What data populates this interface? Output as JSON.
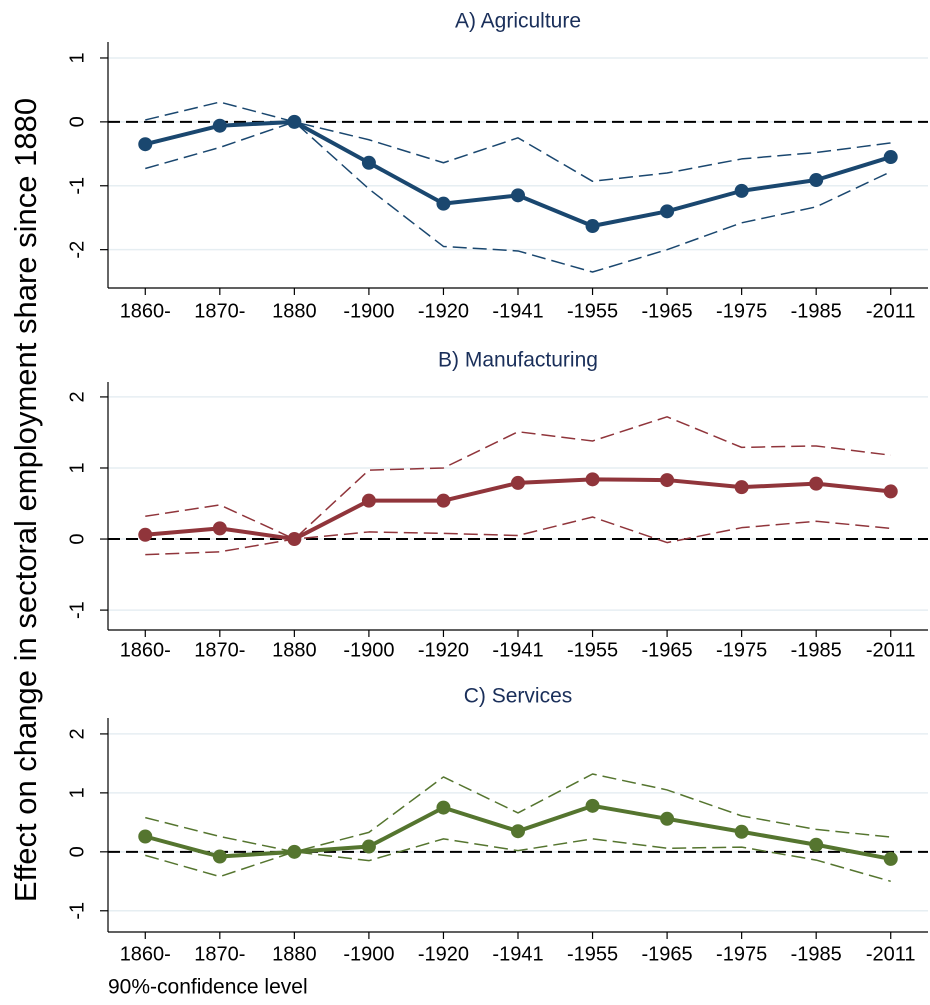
{
  "ylabel": "Effect on change in sectoral employment share since 1880",
  "note": "90%-confidence level",
  "chart_data": [
    {
      "type": "line",
      "title": "A) Agriculture",
      "categories": [
        "1860-",
        "1870-",
        "1880",
        "-1900",
        "-1920",
        "-1941",
        "-1955",
        "-1965",
        "-1975",
        "-1985",
        "-2011"
      ],
      "series": [
        {
          "color": "#1a476f",
          "dashed": true,
          "values": [
            0.03,
            0.31,
            0,
            -0.28,
            -0.64,
            -0.25,
            -0.93,
            -0.8,
            -0.58,
            -0.48,
            -0.33
          ]
        },
        {
          "color": "#1a476f",
          "dashed": true,
          "values": [
            -0.73,
            -0.4,
            0,
            -1.05,
            -1.95,
            -2.02,
            -2.35,
            -2.0,
            -1.58,
            -1.33,
            -0.78
          ]
        },
        {
          "color": "#1a476f",
          "markers": true,
          "values": [
            -0.35,
            -0.06,
            0,
            -0.64,
            -1.28,
            -1.15,
            -1.63,
            -1.4,
            -1.08,
            -0.91,
            -0.55
          ]
        }
      ],
      "ylim": [
        -2.6,
        1.25
      ],
      "yticks": [
        -2,
        -1,
        0,
        1
      ],
      "grid": true,
      "hline": 0
    },
    {
      "type": "line",
      "title": "B) Manufacturing",
      "categories": [
        "1860-",
        "1870-",
        "1880",
        "-1900",
        "-1920",
        "-1941",
        "-1955",
        "-1965",
        "-1975",
        "-1985",
        "-2011"
      ],
      "series": [
        {
          "color": "#90353b",
          "dashed": true,
          "values": [
            0.32,
            0.48,
            0,
            0.97,
            1.0,
            1.51,
            1.38,
            1.72,
            1.29,
            1.31,
            1.18
          ]
        },
        {
          "color": "#90353b",
          "dashed": true,
          "values": [
            -0.22,
            -0.18,
            0,
            0.1,
            0.08,
            0.05,
            0.31,
            -0.05,
            0.16,
            0.25,
            0.15
          ]
        },
        {
          "color": "#90353b",
          "markers": true,
          "values": [
            0.06,
            0.15,
            0,
            0.54,
            0.54,
            0.79,
            0.84,
            0.83,
            0.73,
            0.78,
            0.67
          ]
        }
      ],
      "ylim": [
        -1.28,
        2.21
      ],
      "yticks": [
        -1,
        0,
        1,
        2
      ],
      "grid": true,
      "hline": 0
    },
    {
      "type": "line",
      "title": "C) Services",
      "categories": [
        "1860-",
        "1870-",
        "1880",
        "-1900",
        "-1920",
        "-1941",
        "-1955",
        "-1965",
        "-1975",
        "-1985",
        "-2011"
      ],
      "series": [
        {
          "color": "#55752f",
          "dashed": true,
          "values": [
            0.58,
            0.26,
            0,
            0.33,
            1.27,
            0.66,
            1.32,
            1.05,
            0.61,
            0.38,
            0.25
          ]
        },
        {
          "color": "#55752f",
          "dashed": true,
          "values": [
            -0.06,
            -0.42,
            0,
            -0.15,
            0.22,
            0.02,
            0.22,
            0.06,
            0.08,
            -0.14,
            -0.5
          ]
        },
        {
          "color": "#55752f",
          "markers": true,
          "values": [
            0.26,
            -0.08,
            0,
            0.09,
            0.75,
            0.35,
            0.78,
            0.56,
            0.34,
            0.12,
            -0.12
          ]
        }
      ],
      "ylim": [
        -1.36,
        2.27
      ],
      "yticks": [
        -1,
        0,
        1,
        2
      ],
      "grid": true,
      "hline": 0
    }
  ]
}
